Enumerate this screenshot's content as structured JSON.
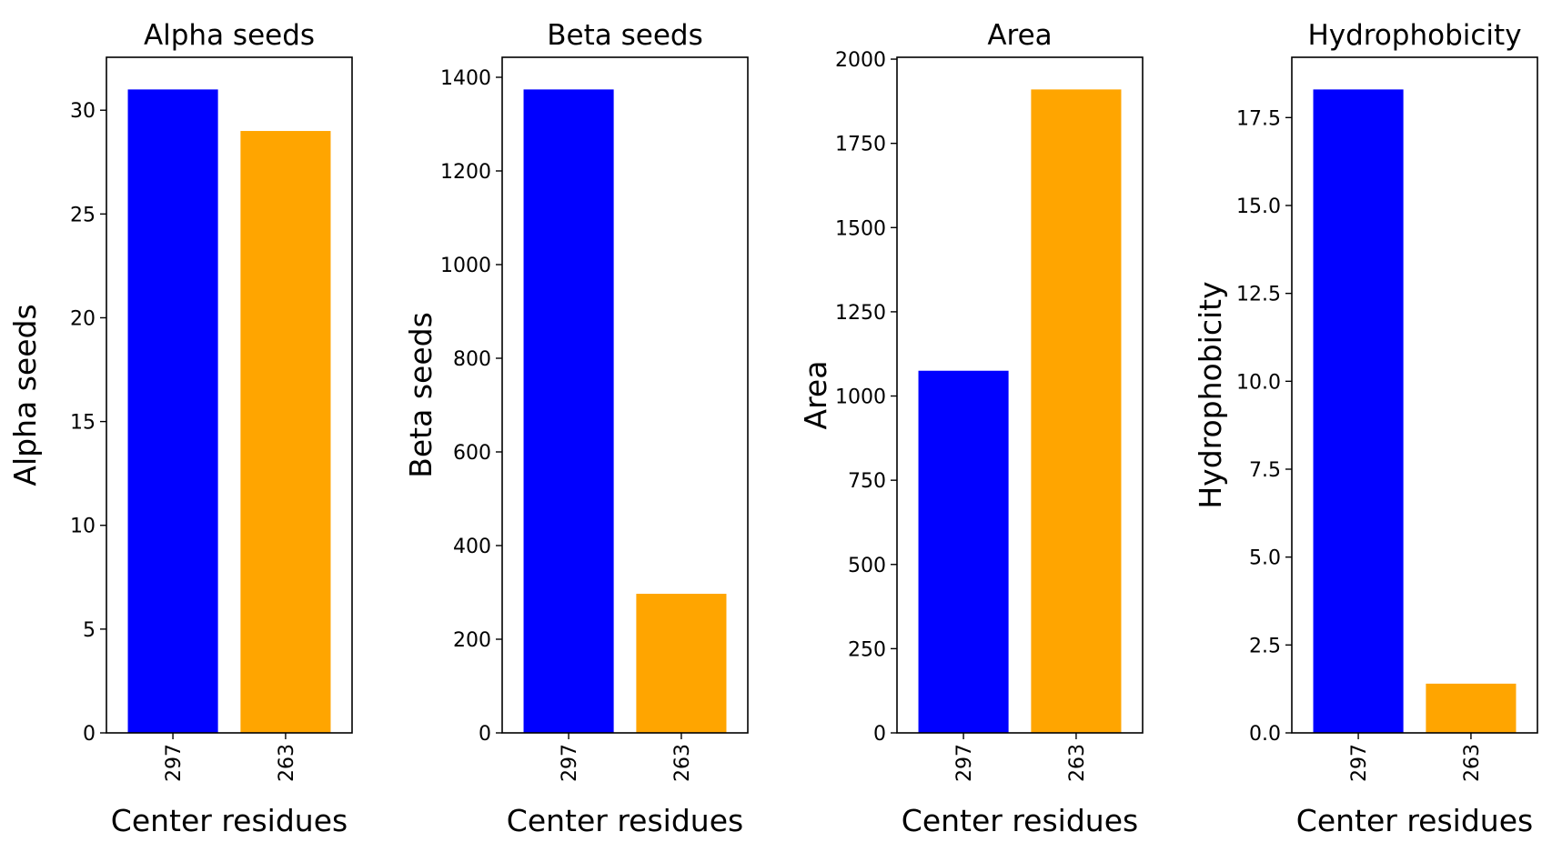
{
  "chart_data": [
    {
      "type": "bar",
      "title": "Alpha seeds",
      "xlabel": "Center residues",
      "ylabel": "Alpha seeds",
      "categories": [
        "297",
        "263"
      ],
      "values": [
        31,
        29
      ],
      "colors": [
        "#0000ff",
        "#ffa500"
      ],
      "ylim": [
        0,
        32.55
      ],
      "yticks": [
        0,
        5,
        10,
        15,
        20,
        25,
        30
      ],
      "ytick_labels": [
        "0",
        "5",
        "10",
        "15",
        "20",
        "25",
        "30"
      ],
      "grid": false,
      "legend": null
    },
    {
      "type": "bar",
      "title": "Beta seeds",
      "xlabel": "Center residues",
      "ylabel": "Beta seeds",
      "categories": [
        "297",
        "263"
      ],
      "values": [
        1374,
        297
      ],
      "colors": [
        "#0000ff",
        "#ffa500"
      ],
      "ylim": [
        0,
        1442.7
      ],
      "yticks": [
        0,
        200,
        400,
        600,
        800,
        1000,
        1200,
        1400
      ],
      "ytick_labels": [
        "0",
        "200",
        "400",
        "600",
        "800",
        "1000",
        "1200",
        "1400"
      ],
      "grid": false,
      "legend": null
    },
    {
      "type": "bar",
      "title": "Area",
      "xlabel": "Center residues",
      "ylabel": "Area",
      "categories": [
        "297",
        "263"
      ],
      "values": [
        1075,
        1910
      ],
      "colors": [
        "#0000ff",
        "#ffa500"
      ],
      "ylim": [
        0,
        2005.5
      ],
      "yticks": [
        0,
        250,
        500,
        750,
        1000,
        1250,
        1500,
        1750,
        2000
      ],
      "ytick_labels": [
        "0",
        "250",
        "500",
        "750",
        "1000",
        "1250",
        "1500",
        "1750",
        "2000"
      ],
      "grid": false,
      "legend": null
    },
    {
      "type": "bar",
      "title": "Hydrophobicity",
      "xlabel": "Center residues",
      "ylabel": "Hydrophobicity",
      "categories": [
        "297",
        "263"
      ],
      "values": [
        18.3,
        1.4
      ],
      "colors": [
        "#0000ff",
        "#ffa500"
      ],
      "ylim": [
        0,
        19.215
      ],
      "yticks": [
        0,
        2.5,
        5,
        7.5,
        10,
        12.5,
        15,
        17.5
      ],
      "ytick_labels": [
        "0.0",
        "2.5",
        "5.0",
        "7.5",
        "10.0",
        "12.5",
        "15.0",
        "17.5"
      ],
      "grid": false,
      "legend": null
    }
  ]
}
